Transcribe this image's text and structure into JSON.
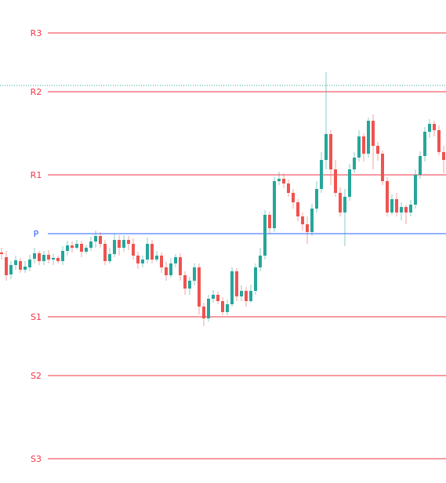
{
  "chart_data": {
    "type": "candlestick",
    "title": "",
    "xlabel": "",
    "ylabel": "",
    "ylim": [
      0,
      616
    ],
    "grid": false,
    "colors": {
      "up": "#26a69a",
      "down": "#ef5350",
      "pivot": "#2962ff",
      "resistance": "#f23645",
      "support": "#f23645",
      "marker": "#26a69a"
    },
    "levels": [
      {
        "label": "R3",
        "value": 574
      },
      {
        "label": "R2",
        "value": 499
      },
      {
        "label": "R1",
        "value": 393
      },
      {
        "label": "P",
        "value": 318
      },
      {
        "label": "S1",
        "value": 212
      },
      {
        "label": "S2",
        "value": 137
      },
      {
        "label": "S3",
        "value": 31
      }
    ],
    "marker_line_value": 507,
    "candles": [
      [
        294,
        292,
        300,
        285
      ],
      [
        288,
        265,
        296,
        258
      ],
      [
        266,
        278,
        283,
        260
      ],
      [
        278,
        284,
        290,
        272
      ],
      [
        283,
        272,
        287,
        268
      ],
      [
        272,
        276,
        283,
        268
      ],
      [
        275,
        285,
        291,
        270
      ],
      [
        286,
        293,
        300,
        280
      ],
      [
        293,
        283,
        296,
        278
      ],
      [
        283,
        291,
        296,
        278
      ],
      [
        291,
        285,
        297,
        280
      ],
      [
        285,
        287,
        292,
        278
      ],
      [
        287,
        283,
        290,
        280
      ],
      [
        283,
        296,
        302,
        278
      ],
      [
        296,
        303,
        309,
        290
      ],
      [
        303,
        300,
        308,
        294
      ],
      [
        300,
        305,
        310,
        298
      ],
      [
        305,
        295,
        309,
        288
      ],
      [
        295,
        300,
        304,
        292
      ],
      [
        300,
        308,
        314,
        296
      ],
      [
        308,
        315,
        322,
        300
      ],
      [
        315,
        305,
        320,
        300
      ],
      [
        305,
        283,
        310,
        278
      ],
      [
        283,
        292,
        300,
        280
      ],
      [
        292,
        310,
        318,
        288
      ],
      [
        310,
        300,
        316,
        290
      ],
      [
        300,
        310,
        316,
        295
      ],
      [
        310,
        305,
        315,
        297
      ],
      [
        305,
        290,
        312,
        285
      ],
      [
        290,
        280,
        295,
        273
      ],
      [
        280,
        285,
        290,
        275
      ],
      [
        285,
        305,
        313,
        280
      ],
      [
        305,
        285,
        310,
        280
      ],
      [
        285,
        290,
        296,
        282
      ],
      [
        290,
        275,
        294,
        268
      ],
      [
        275,
        265,
        282,
        258
      ],
      [
        265,
        280,
        287,
        262
      ],
      [
        280,
        288,
        292,
        275
      ],
      [
        288,
        265,
        293,
        258
      ],
      [
        265,
        248,
        270,
        240
      ],
      [
        248,
        258,
        263,
        240
      ],
      [
        258,
        275,
        280,
        252
      ],
      [
        275,
        225,
        280,
        215
      ],
      [
        225,
        210,
        230,
        200
      ],
      [
        210,
        235,
        240,
        206
      ],
      [
        235,
        240,
        246,
        230
      ],
      [
        240,
        232,
        244,
        228
      ],
      [
        232,
        218,
        237,
        214
      ],
      [
        218,
        228,
        234,
        214
      ],
      [
        228,
        270,
        275,
        225
      ],
      [
        270,
        238,
        274,
        232
      ],
      [
        238,
        245,
        252,
        232
      ],
      [
        245,
        232,
        250,
        225
      ],
      [
        232,
        245,
        253,
        230
      ],
      [
        245,
        275,
        280,
        240
      ],
      [
        275,
        290,
        300,
        270
      ],
      [
        290,
        342,
        348,
        285
      ],
      [
        342,
        325,
        346,
        318
      ],
      [
        325,
        385,
        390,
        320
      ],
      [
        385,
        388,
        397,
        380
      ],
      [
        388,
        382,
        395,
        376
      ],
      [
        382,
        370,
        387,
        365
      ],
      [
        370,
        358,
        375,
        350
      ],
      [
        358,
        340,
        362,
        334
      ],
      [
        340,
        330,
        345,
        322
      ],
      [
        330,
        320,
        340,
        305
      ],
      [
        320,
        350,
        356,
        315
      ],
      [
        350,
        375,
        385,
        345
      ],
      [
        375,
        412,
        422,
        370
      ],
      [
        412,
        445,
        524,
        400
      ],
      [
        445,
        400,
        450,
        380
      ],
      [
        400,
        370,
        412,
        365
      ],
      [
        370,
        345,
        377,
        340
      ],
      [
        345,
        365,
        375,
        302
      ],
      [
        365,
        400,
        407,
        360
      ],
      [
        400,
        415,
        422,
        395
      ],
      [
        415,
        442,
        450,
        410
      ],
      [
        442,
        420,
        446,
        410
      ],
      [
        420,
        462,
        466,
        415
      ],
      [
        462,
        430,
        470,
        400
      ],
      [
        430,
        420,
        435,
        411
      ],
      [
        420,
        385,
        424,
        380
      ],
      [
        385,
        345,
        390,
        340
      ],
      [
        345,
        362,
        368,
        342
      ],
      [
        362,
        345,
        370,
        340
      ],
      [
        345,
        352,
        358,
        335
      ],
      [
        352,
        345,
        355,
        330
      ],
      [
        345,
        355,
        361,
        340
      ],
      [
        355,
        393,
        400,
        350
      ],
      [
        393,
        417,
        423,
        388
      ],
      [
        417,
        448,
        454,
        410
      ],
      [
        448,
        458,
        464,
        440
      ],
      [
        458,
        450,
        462,
        442
      ],
      [
        450,
        422,
        456,
        418
      ],
      [
        422,
        412,
        430,
        395
      ]
    ]
  }
}
